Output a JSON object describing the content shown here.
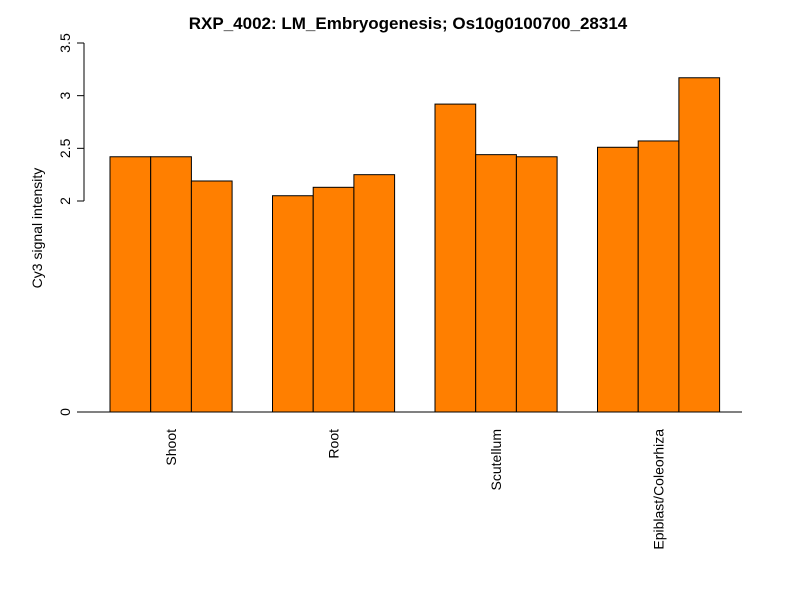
{
  "chart_data": {
    "type": "bar",
    "title": "RXP_4002: LM_Embryogenesis; Os10g0100700_28314",
    "xlabel": "",
    "ylabel": "Cy3 signal intensity",
    "y_ticks": [
      "0",
      "2",
      "2.5",
      "3",
      "3.5"
    ],
    "y_tick_values": [
      0,
      2,
      2.5,
      3,
      3.5
    ],
    "categories": [
      "Shoot",
      "Root",
      "Scutellum",
      "Epiblast/Coleorhiza"
    ],
    "values_per_category": [
      [
        2.42,
        2.42,
        2.19
      ],
      [
        2.05,
        2.13,
        2.25
      ],
      [
        2.92,
        2.44,
        2.42
      ],
      [
        2.51,
        2.57,
        3.17
      ]
    ],
    "axis_break": {
      "lower": [
        0,
        0
      ],
      "upper": [
        2,
        3.5
      ]
    },
    "bar_color": "#ff7f00",
    "bar_border_color": "#000000",
    "axis_color": "#000000",
    "grid": false,
    "legend": "none"
  }
}
